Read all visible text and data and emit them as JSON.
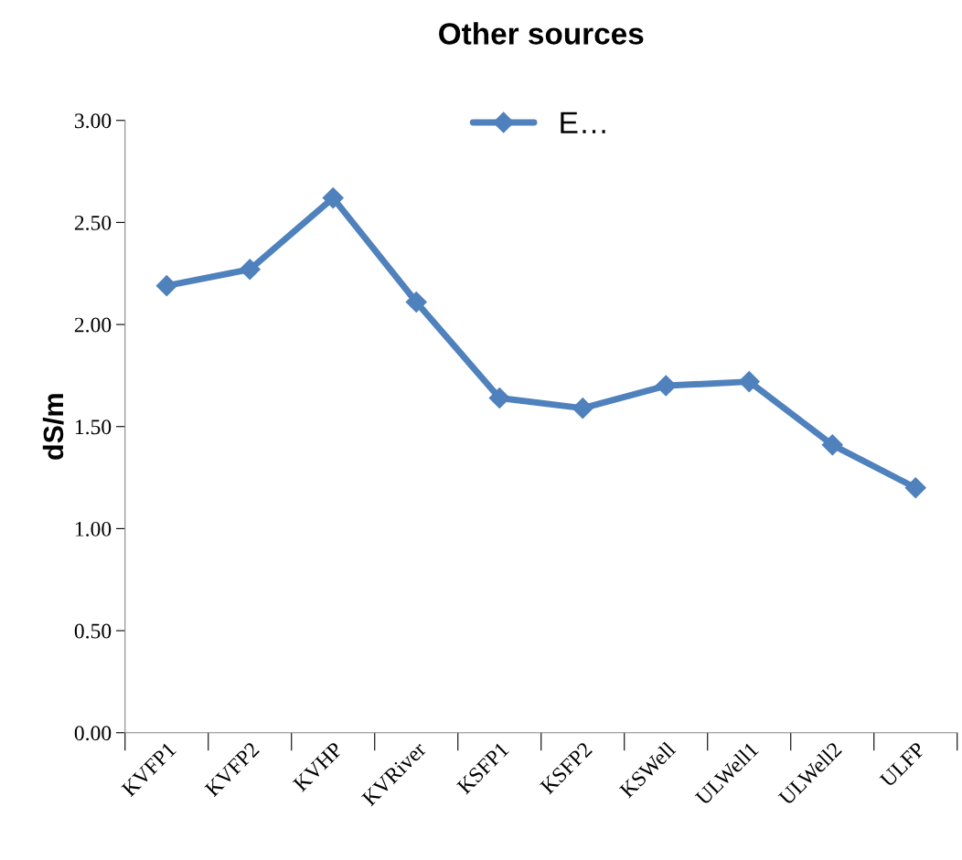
{
  "chart_data": {
    "type": "line",
    "title": "Other sources",
    "ylabel": "dS/m",
    "categories": [
      "KVFP1",
      "KVFP2",
      "KVHP",
      "KVRiver",
      "KSFP1",
      "KSFP2",
      "KSWell",
      "ULWell1",
      "ULWell2",
      "ULFP"
    ],
    "series": [
      {
        "name": "E…",
        "color": "#4f81bd",
        "values": [
          2.19,
          2.27,
          2.62,
          2.11,
          1.64,
          1.59,
          1.7,
          1.72,
          1.41,
          1.2
        ]
      }
    ],
    "ylim": [
      0,
      3
    ],
    "yticks": [
      {
        "value": 0,
        "label": "0.00"
      },
      {
        "value": 0.5,
        "label": "0.50"
      },
      {
        "value": 1,
        "label": "1.00"
      },
      {
        "value": 1.5,
        "label": "1.50"
      },
      {
        "value": 2,
        "label": "2.00"
      },
      {
        "value": 2.5,
        "label": "2.50"
      },
      {
        "value": 3,
        "label": "3.00"
      }
    ],
    "grid": false,
    "legend": "top",
    "marker": "diamond",
    "line_style": "solid"
  }
}
